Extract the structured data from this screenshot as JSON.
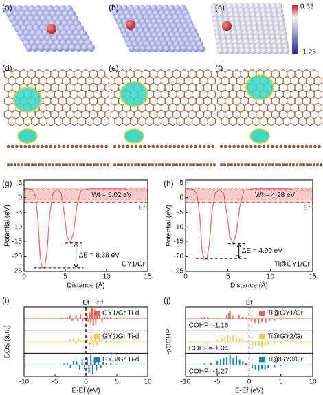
{
  "figure": {
    "panel_labels": [
      "(a)",
      "(b)",
      "(c)",
      "(d)",
      "(e)",
      "(f)"
    ],
    "colorbar_ticks": [
      0.33,
      -1.23
    ]
  },
  "chart_data": [
    {
      "type": "line",
      "label": "(g)",
      "xlabel": "Distance (Å)",
      "ylabel": "Potential (eV)",
      "xlim": [
        0,
        15
      ],
      "xticks": [
        0,
        5,
        10,
        15
      ],
      "ylim": [
        -25,
        6
      ],
      "yticks": [
        -25,
        -20,
        -15,
        -10,
        -5,
        0,
        5
      ],
      "color": "#e8706a",
      "band_color": "#f9caca",
      "x": [
        0,
        0.5,
        1,
        1.4,
        1.7,
        1.95,
        2.2,
        2.5,
        2.8,
        3.1,
        3.5,
        4,
        4.5,
        4.9,
        5.2,
        5.6,
        6,
        6.4,
        6.9,
        8,
        12.2,
        12.6,
        13,
        15
      ],
      "values": [
        3,
        3,
        2.8,
        0.5,
        -8,
        -20,
        -23.8,
        -23.8,
        -18,
        -6,
        1.5,
        2.8,
        1.5,
        -6,
        -13,
        -15.4,
        -12,
        -3,
        2.5,
        3,
        3,
        2.7,
        2.6,
        2.6
      ],
      "vacuum_level": 3.3,
      "fermi_level": -1.7,
      "delta_levels": [
        -15.4,
        -23.8
      ],
      "wf_label": "Wf = 5.02 eV",
      "ef_label": "Ef",
      "delta_label": "ΔE = 8.38 eV",
      "system_label": "GY1/Gr"
    },
    {
      "type": "line",
      "label": "(h)",
      "xlabel": "Distance (Å)",
      "ylabel": "Potential (eV)",
      "xlim": [
        0,
        15
      ],
      "xticks": [
        0,
        5,
        10,
        15
      ],
      "ylim": [
        -25,
        6
      ],
      "yticks": [
        -25,
        -20,
        -15,
        -10,
        -5,
        0,
        5
      ],
      "color": "#e8706a",
      "band_color": "#f9caca",
      "x": [
        0,
        0.5,
        1,
        1.4,
        1.7,
        1.95,
        2.2,
        2.5,
        2.8,
        3.1,
        3.5,
        4,
        4.5,
        4.9,
        5.2,
        5.6,
        6,
        6.4,
        6.9,
        8,
        12.2,
        12.6,
        13,
        15
      ],
      "values": [
        3,
        3,
        2.8,
        0.5,
        -7,
        -18,
        -20.8,
        -20.8,
        -16,
        -5,
        1.5,
        2.8,
        1.5,
        -6,
        -13,
        -15.6,
        -12,
        -3,
        2.5,
        3,
        3,
        2.7,
        2.6,
        2.6
      ],
      "vacuum_level": 3.3,
      "fermi_level": -1.7,
      "delta_levels": [
        -15.6,
        -20.6
      ],
      "wf_label": "Wf = 4.98 eV",
      "ef_label": "Ef",
      "delta_label": "ΔE = 4.99 eV",
      "system_label": "Ti@GY1/Gr"
    },
    {
      "type": "spikes",
      "label": "(i)",
      "xlabel": "E-Ef (eV)",
      "ylabel": "DOS (a.u.)",
      "xlim": [
        -10,
        10
      ],
      "xticks": [
        -10,
        -5,
        0,
        5,
        10
      ],
      "ylim": [
        -1,
        1
      ],
      "fermi_x": 0,
      "d_band_center": 0.8,
      "ef_label": "Ef",
      "ed_label": "εd",
      "series": [
        {
          "name": "GY1/Gr Ti-d",
          "color": "#e8655a",
          "x": [
            -4,
            -3,
            -2.6,
            -2.2,
            -1.6,
            -1.3,
            -0.9,
            -0.5,
            -0.2,
            0.2,
            0.4,
            0.6,
            0.8,
            1,
            1.2,
            1.4,
            1.6,
            1.8,
            2.2,
            2.6,
            3,
            3.4,
            4,
            5
          ],
          "values": [
            0.05,
            0.1,
            0.3,
            -0.2,
            0.35,
            -0.25,
            0.4,
            -0.2,
            0.15,
            0.25,
            -0.3,
            0.6,
            -0.4,
            0.9,
            -0.6,
            0.8,
            -0.5,
            0.55,
            0.25,
            -0.3,
            0.2,
            0.15,
            0.1,
            0.05
          ]
        },
        {
          "name": "GY2/Gr Ti-d",
          "color": "#f5c45a",
          "x": [
            -3.2,
            -2.6,
            -2,
            -1.6,
            -1.2,
            -0.8,
            -0.3,
            0.2,
            0.6,
            0.9,
            1.2,
            1.5,
            1.8,
            2.2,
            2.6,
            3.2,
            4,
            5
          ],
          "values": [
            0.1,
            0.2,
            0.3,
            -0.2,
            0.25,
            0.15,
            -0.2,
            0.3,
            -0.35,
            0.5,
            -0.45,
            0.6,
            -0.3,
            0.35,
            0.2,
            -0.15,
            0.1,
            0.05
          ]
        },
        {
          "name": "GY3/Gr Ti-d",
          "color": "#1e7fa8",
          "x": [
            -3.5,
            -3,
            -2.5,
            -2,
            -1.5,
            -1,
            -0.6,
            -0.2,
            0.2,
            0.5,
            0.8,
            1.1,
            1.4,
            1.7,
            2,
            2.4,
            2.8,
            3.3,
            4,
            5
          ],
          "values": [
            0.1,
            0.2,
            -0.25,
            0.35,
            0.3,
            -0.4,
            0.45,
            -0.35,
            0.6,
            -0.7,
            0.85,
            -0.8,
            0.7,
            -0.5,
            0.4,
            -0.3,
            0.25,
            0.15,
            0.1,
            0.05
          ]
        }
      ]
    },
    {
      "type": "spikes",
      "label": "(j)",
      "xlabel": "E-Ef (eV)",
      "ylabel": "-pCOHP",
      "xlim": [
        -10,
        10
      ],
      "xticks": [
        -10,
        -5,
        0,
        5,
        10
      ],
      "ylim": [
        -1,
        1
      ],
      "fermi_x": 0,
      "ef_label": "Ef",
      "series": [
        {
          "name": "Ti@GY1/Gr",
          "color": "#e8655a",
          "icohp_label": "ICOHP=-1.16",
          "x": [
            -7.5,
            -7,
            -6.5,
            -3.5,
            -3.2,
            -3,
            -2.6,
            -1.6,
            -1,
            -0.4,
            0.4,
            0.9,
            1.5,
            2,
            2.6,
            3.2,
            4,
            5,
            6
          ],
          "values": [
            0.1,
            0.15,
            0.1,
            0.3,
            0.5,
            0.7,
            0.25,
            0.3,
            0.15,
            0.1,
            -0.3,
            -0.35,
            -0.4,
            -0.3,
            -0.35,
            -0.2,
            -0.15,
            -0.1,
            -0.05
          ]
        },
        {
          "name": "Ti@GY2/Gr",
          "color": "#f5c45a",
          "icohp_label": "ICOHP=-1.04",
          "x": [
            -6.5,
            -5,
            -4.2,
            -3.8,
            -3.4,
            -3,
            -2.5,
            -2,
            -1.5,
            -1,
            -0.5,
            0.5,
            1,
            1.5,
            2,
            2.5,
            3,
            4,
            5
          ],
          "values": [
            0.1,
            0.15,
            0.3,
            0.45,
            0.6,
            0.5,
            0.55,
            0.4,
            0.3,
            0.2,
            0.1,
            -0.3,
            -0.4,
            -0.35,
            -0.45,
            -0.3,
            -0.25,
            -0.15,
            -0.1
          ]
        },
        {
          "name": "Ti@GY3/Gr",
          "color": "#1e7fa8",
          "icohp_label": "ICOHP=-1.27",
          "x": [
            -7,
            -6,
            -5,
            -4.5,
            -4,
            -3.5,
            -3,
            -2.5,
            -2,
            -1.5,
            -1,
            -0.5,
            0.5,
            1,
            1.5,
            2,
            2.5,
            3,
            4,
            5
          ],
          "values": [
            0.1,
            0.2,
            0.35,
            0.5,
            0.6,
            0.7,
            0.85,
            0.6,
            0.8,
            0.45,
            0.3,
            0.15,
            -0.3,
            -0.4,
            -0.5,
            -0.35,
            -0.4,
            -0.3,
            -0.2,
            -0.1
          ]
        }
      ]
    }
  ]
}
